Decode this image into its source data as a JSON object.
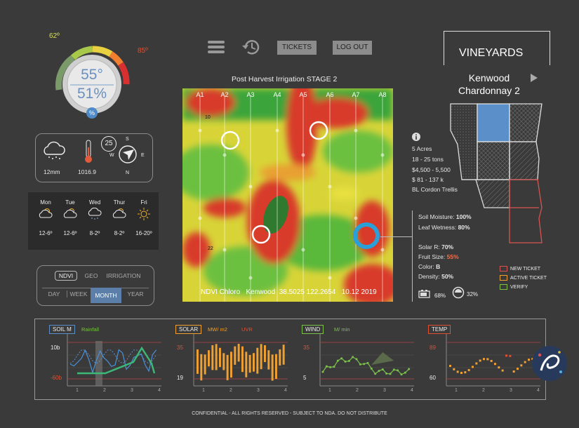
{
  "gauge": {
    "low": "62º",
    "high": "85º",
    "temp": "55°",
    "humidity": "51%",
    "badge": "%"
  },
  "weather": {
    "rain": "12mm",
    "pressure": "1016.9",
    "wind_speed": "25",
    "compass": {
      "s": "S",
      "w": "W",
      "e": "E",
      "n": "N"
    }
  },
  "forecast": [
    {
      "day": "Mon",
      "temp": "12-6º",
      "icon": "cloud-sun-icon"
    },
    {
      "day": "Tue",
      "temp": "12-6º",
      "icon": "cloud-sun-icon"
    },
    {
      "day": "Wed",
      "temp": "8-2º",
      "icon": "cloud-rain-icon"
    },
    {
      "day": "Thur",
      "temp": "8-2º",
      "icon": "cloud-sun-icon"
    },
    {
      "day": "Fri",
      "temp": "16-20º",
      "icon": "sun-icon"
    }
  ],
  "layers": {
    "ndvi": "NDVI",
    "geo": "GEO",
    "irrigation": "IRRIGATION"
  },
  "periods": {
    "day": "DAY",
    "week": "WEEK",
    "month": "MONTH",
    "year": "YEAR"
  },
  "toolbar": {
    "tickets": "TICKETS",
    "logout": "LOG OUT"
  },
  "map": {
    "title": "Post Harvest Irrigation  STAGE 2",
    "columns": [
      "A1",
      "A2",
      "A3",
      "A4",
      "A5",
      "A6",
      "A7",
      "A8"
    ],
    "row_top": "10",
    "row_bottom": "22",
    "caption": "NDVI Chloro   Kenwood  38.5025 122.2654   10.12 2019"
  },
  "block": {
    "section": "VINEYARDS",
    "name_line1": "Kenwood",
    "name_line2": "Chardonnay 2"
  },
  "info": {
    "acres": "5 Acres",
    "tons": "18 - 25 tons",
    "value1": "$4,500 - 5,500",
    "value2": "$ 81 - 137 k",
    "trellis": "BL Cordon Trellis"
  },
  "readings": {
    "soil_label": "Soil Moisture:",
    "soil_value": "100%",
    "leaf_label": "Leaf Wetness:",
    "leaf_value": "80%",
    "solar_label": "Solar R:",
    "solar_value": "70%",
    "fruit_label": "Fruit Size:",
    "fruit_value": "55%",
    "color_label": "Color:",
    "color_value": "B",
    "density_label": "Density:",
    "density_value": "50%",
    "battery": "68%",
    "signal": "32%"
  },
  "legend": {
    "new": "NEW TICKET",
    "active": "ACTIVE TICKET",
    "verify": "VERIFY",
    "colors": {
      "new": "#d9534f",
      "active": "#f0a030",
      "verify": "#7cc24a"
    }
  },
  "charts": [
    {
      "label": "SOIL M",
      "sub1": "Rainfall",
      "sub2": "",
      "y_top": "10b",
      "y_bottom": "-60b",
      "ticks": [
        "1",
        "2",
        "3",
        "4"
      ]
    },
    {
      "label": "SOLAR",
      "sub1": "MW/ m2",
      "sub2": "UVR",
      "y_top": "35",
      "y_bottom": "19",
      "ticks": [
        "1",
        "2",
        "3",
        "4"
      ]
    },
    {
      "label": "WIND",
      "sub1": "M/ min",
      "sub2": "",
      "y_top": "35",
      "y_bottom": "5",
      "ticks": [
        "1",
        "2",
        "3",
        "4"
      ]
    },
    {
      "label": "TEMP",
      "sub1": "",
      "sub2": "",
      "y_top": "89",
      "y_bottom": "60",
      "ticks": [
        "1",
        "2",
        "3",
        "4"
      ]
    }
  ],
  "footer": "CONFIDENTIAL - ALL RIGHTS RESERVED - SUBJECT TO NDA. DO NOT DISTRIBUTE",
  "colors": {
    "accent": "#5b8fc9",
    "map_red": "#d83a2a",
    "map_green": "#3aa43a",
    "map_yellow": "#e8e040"
  }
}
